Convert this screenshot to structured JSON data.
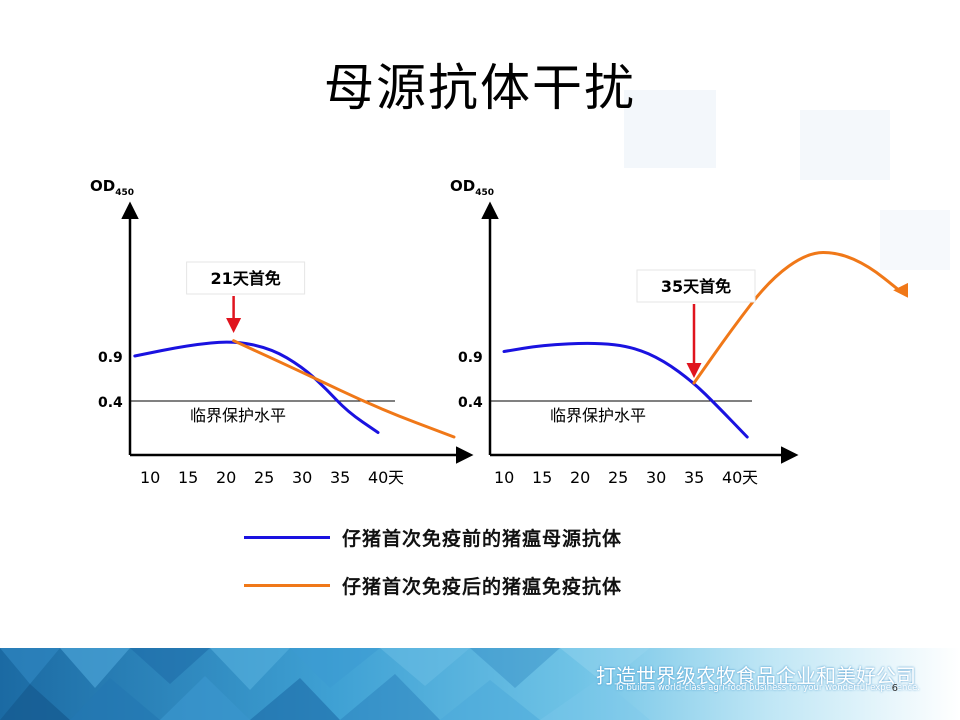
{
  "title": "母源抗体干扰",
  "chart_data": [
    {
      "type": "line",
      "ylabel": "OD",
      "ylabel_sub": "450",
      "x_ticks": [
        "10",
        "15",
        "20",
        "25",
        "30",
        "35",
        "40"
      ],
      "x_unit": "天",
      "y_ticks": [
        "0.9",
        "0.4"
      ],
      "threshold": {
        "value": 0.4,
        "label": "临界保护水平"
      },
      "annotation": {
        "text": "21天首免",
        "x": 21
      },
      "series": [
        {
          "name": "仔猪首次免疫前的猪瘟母源抗体",
          "color": "#1a12e0",
          "points": [
            [
              8,
              0.9
            ],
            [
              15,
              1.02
            ],
            [
              21,
              1.07
            ],
            [
              26,
              0.98
            ],
            [
              30,
              0.78
            ],
            [
              33,
              0.55
            ],
            [
              36,
              0.28
            ],
            [
              40,
              0.05
            ]
          ]
        },
        {
          "name": "仔猪首次免疫后的猪瘟免疫抗体",
          "color": "#f07818",
          "points": [
            [
              21,
              1.07
            ],
            [
              30,
              0.72
            ],
            [
              40,
              0.32
            ],
            [
              50,
              0.0
            ]
          ]
        }
      ]
    },
    {
      "type": "line",
      "ylabel": "OD",
      "ylabel_sub": "450",
      "x_ticks": [
        "10",
        "15",
        "20",
        "25",
        "30",
        "35",
        "40"
      ],
      "x_unit": "天",
      "y_ticks": [
        "0.9",
        "0.4"
      ],
      "threshold": {
        "value": 0.4,
        "label": "临界保护水平"
      },
      "annotation": {
        "text": "35天首免",
        "x": 35
      },
      "series": [
        {
          "name": "仔猪首次免疫前的猪瘟母源抗体",
          "color": "#1a12e0",
          "points": [
            [
              10,
              0.95
            ],
            [
              15,
              1.02
            ],
            [
              22,
              1.05
            ],
            [
              27,
              1.0
            ],
            [
              31,
              0.85
            ],
            [
              35,
              0.6
            ],
            [
              38,
              0.35
            ],
            [
              42,
              0.0
            ]
          ]
        },
        {
          "name": "仔猪首次免疫后的猪瘟免疫抗体",
          "color": "#f07818",
          "points": [
            [
              35,
              0.6
            ],
            [
              40,
              1.2
            ],
            [
              45,
              1.75
            ],
            [
              50,
              2.05
            ],
            [
              54,
              2.05
            ],
            [
              58,
              1.9
            ],
            [
              62,
              1.63
            ]
          ]
        }
      ]
    }
  ],
  "legend": [
    {
      "label": "仔猪首次免疫前的猪瘟母源抗体",
      "color": "#1a12e0"
    },
    {
      "label": "仔猪首次免疫后的猪瘟免疫抗体",
      "color": "#f07818"
    }
  ],
  "footer": {
    "slogan_cn": "打造世界级农牧食品企业和美好公司",
    "slogan_en": "To build a world-class agri-food business for your wonderful experience.",
    "page_number": "6"
  }
}
